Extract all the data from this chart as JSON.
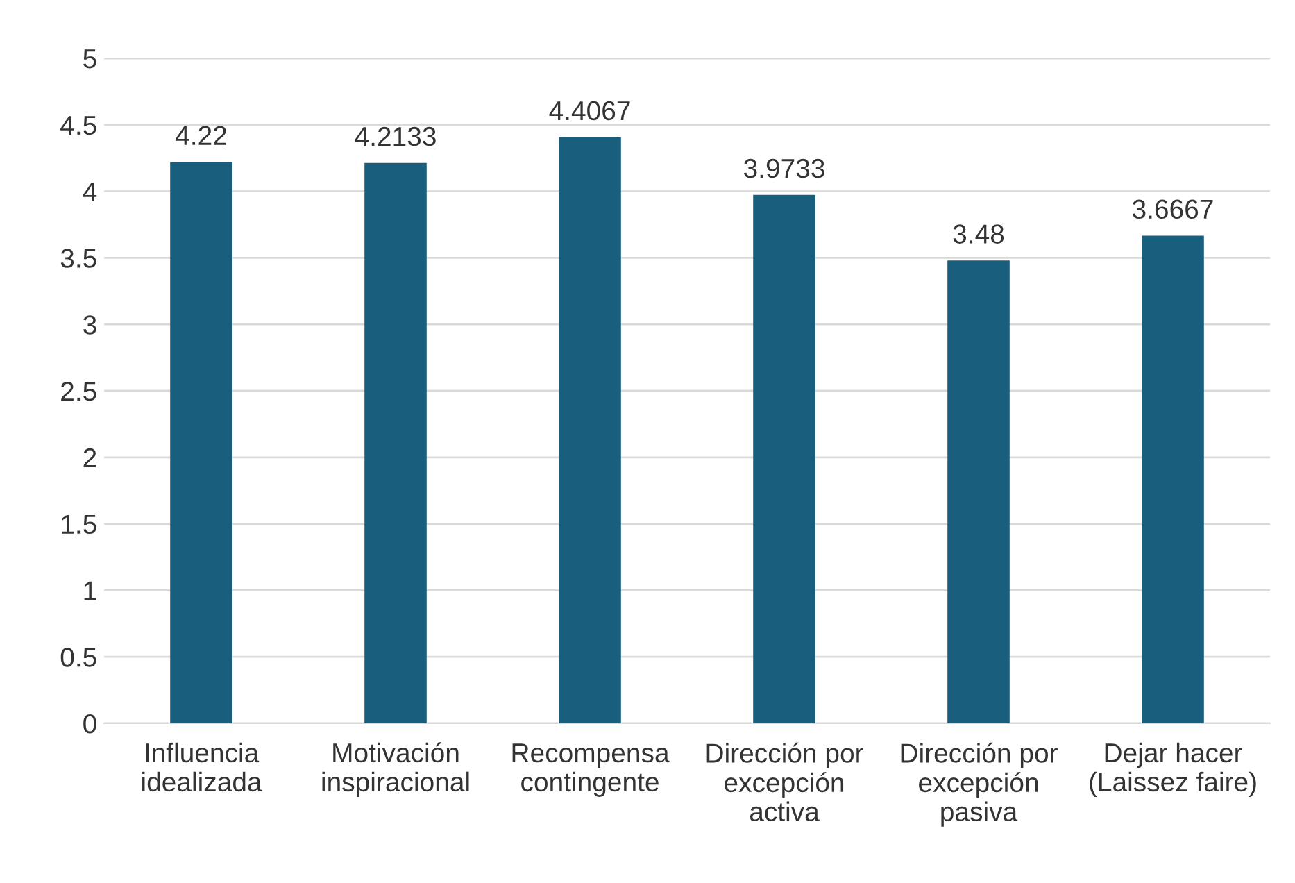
{
  "chart_data": {
    "type": "bar",
    "categories": [
      "Influencia\nidealizada",
      "Motivación\ninspiracional",
      "Recompensa\ncontingente",
      "Dirección por\nexcepción\nactiva",
      "Dirección por\nexcepción\npasiva",
      "Dejar hacer\n(Laissez faire)"
    ],
    "values": [
      4.22,
      4.2133,
      4.4067,
      3.9733,
      3.48,
      3.6667
    ],
    "color": "#1a5e7e",
    "ylim": [
      0,
      5
    ],
    "yticks": [
      0,
      0.5,
      1,
      1.5,
      2,
      2.5,
      3,
      3.5,
      4,
      4.5,
      5
    ],
    "grid": "y",
    "legend": false,
    "data_labels": true
  }
}
